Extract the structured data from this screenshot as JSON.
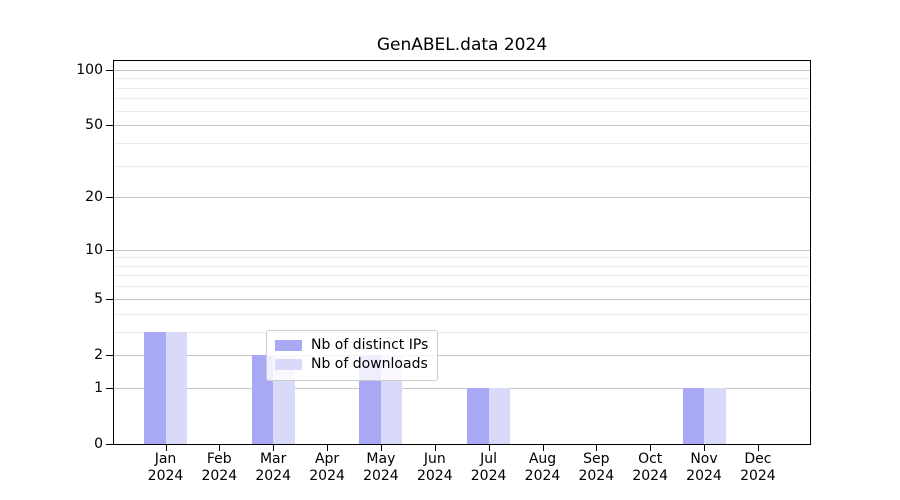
{
  "chart_data": {
    "type": "bar",
    "title": "GenABEL.data 2024",
    "categories": [
      "Jan 2024",
      "Feb 2024",
      "Mar 2024",
      "Apr 2024",
      "May 2024",
      "Jun 2024",
      "Jul 2024",
      "Aug 2024",
      "Sep 2024",
      "Oct 2024",
      "Nov 2024",
      "Dec 2024"
    ],
    "series": [
      {
        "name": "Nb of distinct IPs",
        "color": "#a8a8f5",
        "values": [
          3,
          0,
          2,
          0,
          2,
          0,
          1,
          0,
          0,
          0,
          1,
          0
        ]
      },
      {
        "name": "Nb of downloads",
        "color": "#d9d9fa",
        "values": [
          3,
          0,
          2,
          0,
          2,
          0,
          1,
          0,
          0,
          0,
          1,
          0
        ]
      }
    ],
    "y_axis": {
      "scale": "log1p",
      "major_ticks": [
        0,
        1,
        2,
        5,
        10,
        20,
        50,
        100
      ],
      "minor_ticks": [
        3,
        4,
        6,
        7,
        8,
        9,
        30,
        40,
        60,
        70,
        80,
        90
      ],
      "top_value_approx": 112
    },
    "x_axis": {
      "tick_label_lines": 2
    },
    "legend": {
      "position": "inside-lower-middle",
      "frame": true
    },
    "colors": {
      "grid_major": "#c6c6c6",
      "grid_minor": "#ebebeb",
      "axis": "#000000",
      "background": "#ffffff"
    }
  }
}
